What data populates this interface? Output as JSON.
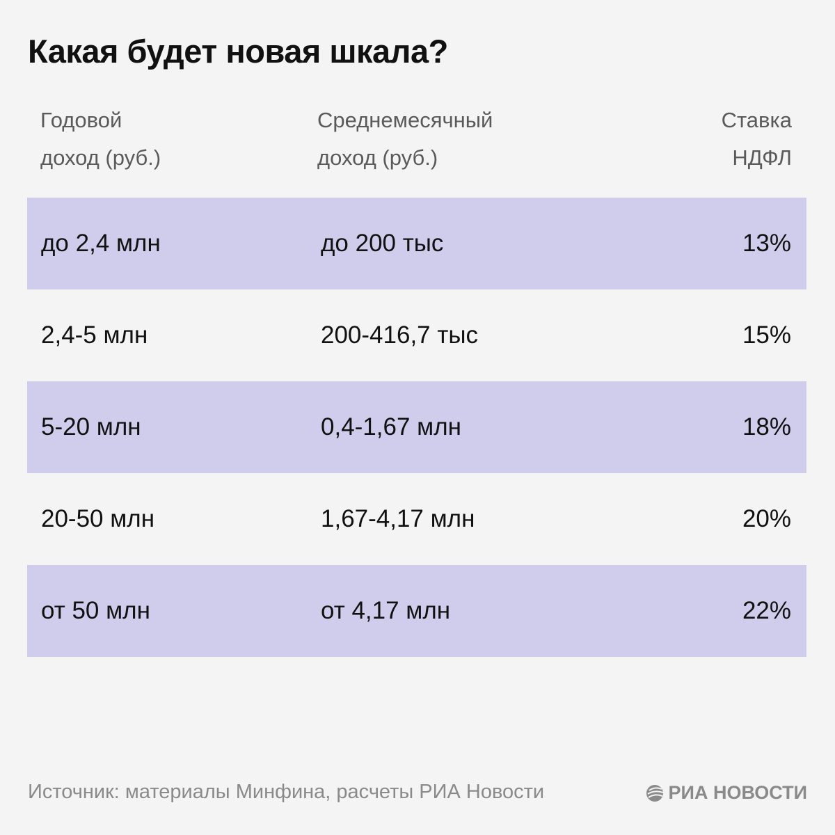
{
  "title": "Какая будет новая шкала?",
  "headers": [
    "Годовой\nдоход (руб.)",
    "Среднемесячный\nдоход (руб.)",
    "Ставка\nНДФЛ"
  ],
  "header_lines": {
    "annual": [
      "Годовой",
      "доход (руб.)"
    ],
    "monthly": [
      "Среднемесячный",
      "доход (руб.)"
    ],
    "rate": [
      "Ставка",
      "НДФЛ"
    ]
  },
  "rows": [
    {
      "annual": "до 2,4 млн",
      "monthly": "до 200 тыс",
      "rate": "13%"
    },
    {
      "annual": "2,4-5 млн",
      "monthly": "200-416,7 тыс",
      "rate": "15%"
    },
    {
      "annual": "5-20 млн",
      "monthly": "0,4-1,67 млн",
      "rate": "18%"
    },
    {
      "annual": "20-50 млн",
      "monthly": "1,67-4,17 млн",
      "rate": "20%"
    },
    {
      "annual": "от 50 млн",
      "monthly": "от 4,17 млн",
      "rate": "22%"
    }
  ],
  "source": "Источник: материалы Минфина, расчеты РИА Новости",
  "logo": "РИА НОВОСТИ",
  "colors": {
    "row_shade": "#d0cceb",
    "background": "#f4f4f4"
  }
}
